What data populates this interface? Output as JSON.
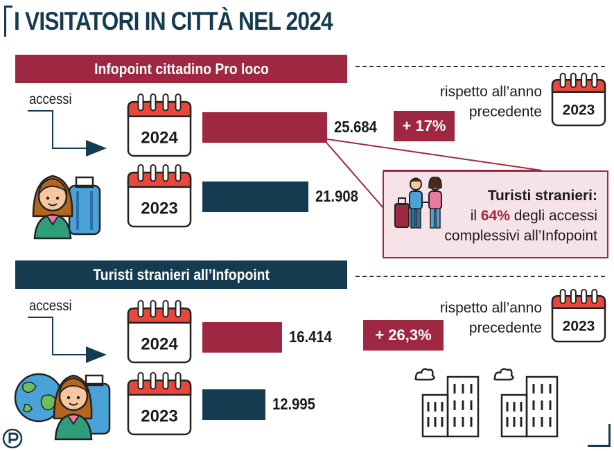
{
  "title": "I VISITATORI IN CITTÀ NEL 2024",
  "colors": {
    "accent_red": "#9e2841",
    "navy": "#153b51",
    "callout_bg": "#f6e3e8"
  },
  "chart_data": [
    {
      "type": "bar",
      "title": "Infopoint cittadino Pro loco",
      "label": "accessi",
      "categories": [
        "2024",
        "2023"
      ],
      "values": [
        25684,
        21908
      ],
      "value_labels": [
        "25.684",
        "21.908"
      ],
      "change_label": "+ 17%",
      "comparison_text_line1": "rispetto all’anno",
      "comparison_text_line2": "precedente",
      "comparison_year": "2023",
      "callout": {
        "heading": "Turisti stranieri:",
        "line2_pre": "il ",
        "line2_highlight": "64%",
        "line2_post": " degli accessi",
        "line3": "complessivi all’Infopoint"
      }
    },
    {
      "type": "bar",
      "title": "Turisti stranieri all’Infopoint",
      "label": "accessi",
      "categories": [
        "2024",
        "2023"
      ],
      "values": [
        16414,
        12995
      ],
      "value_labels": [
        "16.414",
        "12.995"
      ],
      "change_label": "+ 26,3%",
      "comparison_text_line1": "rispetto all’anno",
      "comparison_text_line2": "precedente",
      "comparison_year": "2023"
    }
  ],
  "icons": [
    "calendar-icon",
    "tourist-with-suitcase-icon",
    "globe-icon",
    "tourist-couple-icon",
    "city-buildings-icon",
    "publisher-logo-icon"
  ]
}
